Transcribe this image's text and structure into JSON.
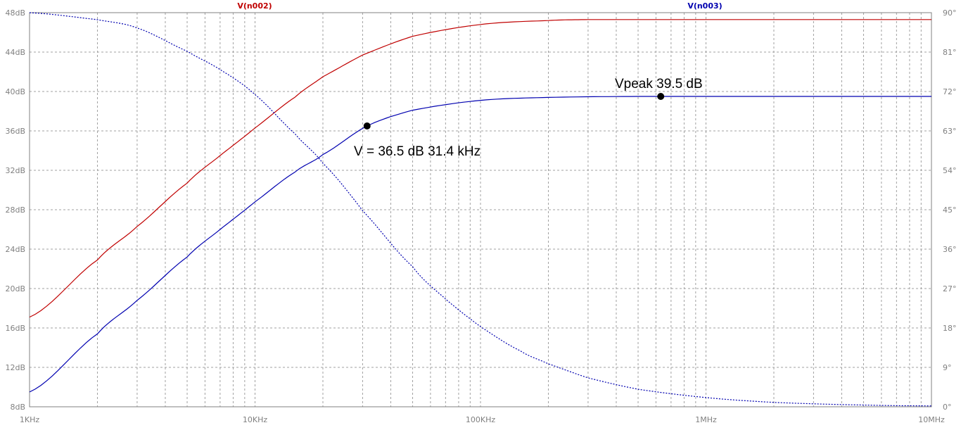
{
  "chart_data": {
    "type": "line",
    "x_scale": "log",
    "x_ticks": [
      {
        "value": 1000,
        "label": "1KHz"
      },
      {
        "value": 10000,
        "label": "10KHz"
      },
      {
        "value": 100000,
        "label": "100KHz"
      },
      {
        "value": 1000000,
        "label": "1MHz"
      },
      {
        "value": 10000000,
        "label": "10MHz"
      }
    ],
    "xlim": [
      1000,
      10000000
    ],
    "y_left": {
      "ylim": [
        8,
        48
      ],
      "ticks": [
        "8dB",
        "12dB",
        "16dB",
        "20dB",
        "24dB",
        "28dB",
        "32dB",
        "36dB",
        "40dB",
        "44dB",
        "48dB"
      ]
    },
    "y_right": {
      "ylim": [
        0,
        90
      ],
      "ticks": [
        "0°",
        "9°",
        "18°",
        "27°",
        "36°",
        "45°",
        "54°",
        "63°",
        "72°",
        "81°",
        "90°"
      ]
    },
    "grid": true,
    "colors": {
      "n002": "#c00000",
      "n003": "#0000b0",
      "grid": "#a0a0a0",
      "axis": "#808080"
    },
    "series": [
      {
        "name": "V(n002)",
        "axis": "left",
        "style": "solid",
        "x": [
          1000,
          2000,
          3000,
          5000,
          7000,
          10000,
          15000,
          20000,
          30000,
          50000,
          100000,
          200000,
          300000,
          1000000,
          10000000
        ],
        "y": [
          17.1,
          22.9,
          26.3,
          30.7,
          33.5,
          36.3,
          39.4,
          41.5,
          43.7,
          45.6,
          46.8,
          47.2,
          47.3,
          47.3,
          47.3
        ]
      },
      {
        "name": "V(n003)",
        "axis": "left",
        "style": "solid",
        "x": [
          1000,
          2000,
          3000,
          5000,
          7000,
          10000,
          15000,
          20000,
          31400,
          50000,
          100000,
          200000,
          500000,
          1000000,
          10000000
        ],
        "y": [
          9.5,
          15.4,
          18.8,
          23.2,
          26.0,
          28.8,
          31.8,
          33.6,
          36.5,
          38.1,
          39.1,
          39.4,
          39.5,
          39.5,
          39.5
        ]
      },
      {
        "name": "V(n003) phase",
        "axis": "right",
        "style": "dotted",
        "x": [
          1000,
          2000,
          3000,
          5000,
          7000,
          10000,
          15000,
          20000,
          30000,
          50000,
          70000,
          100000,
          150000,
          200000,
          300000,
          500000,
          1000000,
          2000000,
          5000000,
          10000000
        ],
        "y": [
          90,
          88.4,
          86.5,
          81.2,
          77.0,
          71.3,
          62.4,
          55.6,
          44.8,
          32.0,
          24.6,
          18.3,
          12.8,
          9.8,
          6.6,
          4.0,
          2.1,
          1.0,
          0.4,
          0.2
        ]
      }
    ],
    "annotations": [
      {
        "text": "V = 36.5 dB 31.4 kHz",
        "x": 31400,
        "y": 36.5
      },
      {
        "text": "Vpeak 39.5 dB",
        "x": 630000,
        "y": 39.5
      }
    ]
  }
}
